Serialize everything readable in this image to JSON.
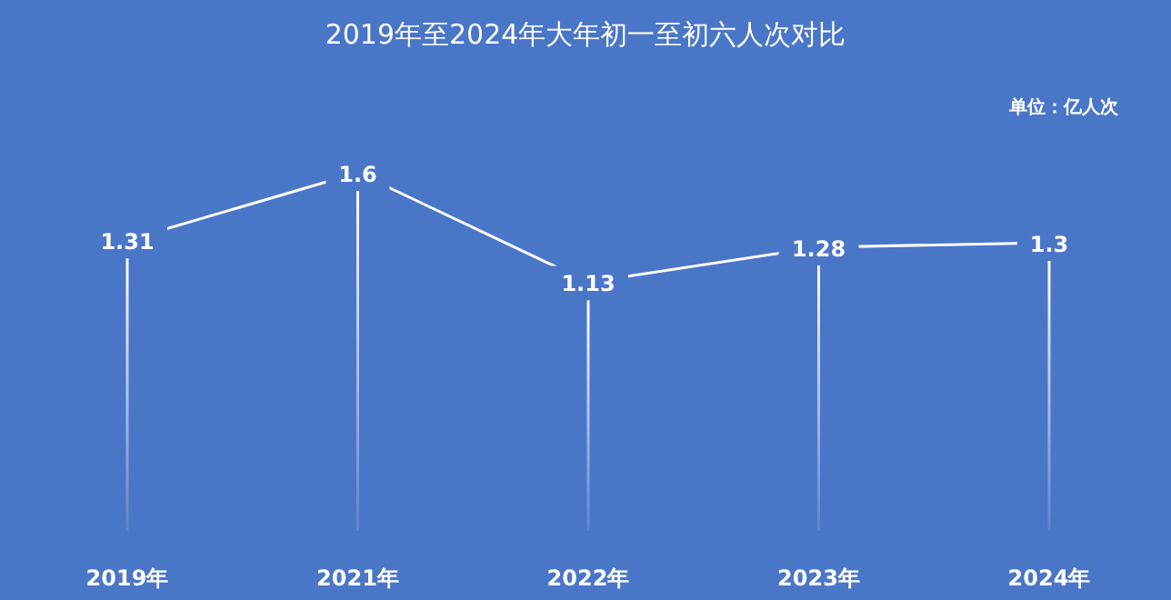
{
  "chart_data": {
    "type": "line",
    "title": "2019年至2024年大年初一至初六人次对比",
    "annotations": [
      "单位：亿人次"
    ],
    "categories": [
      "2019年",
      "2021年",
      "2022年",
      "2023年",
      "2024年"
    ],
    "series": [
      {
        "color": "#ffffff",
        "values": [
          1.31,
          1.6,
          1.13,
          1.28,
          1.3
        ]
      }
    ],
    "data_labels": true,
    "marker": "none",
    "grid": "x"
  }
}
